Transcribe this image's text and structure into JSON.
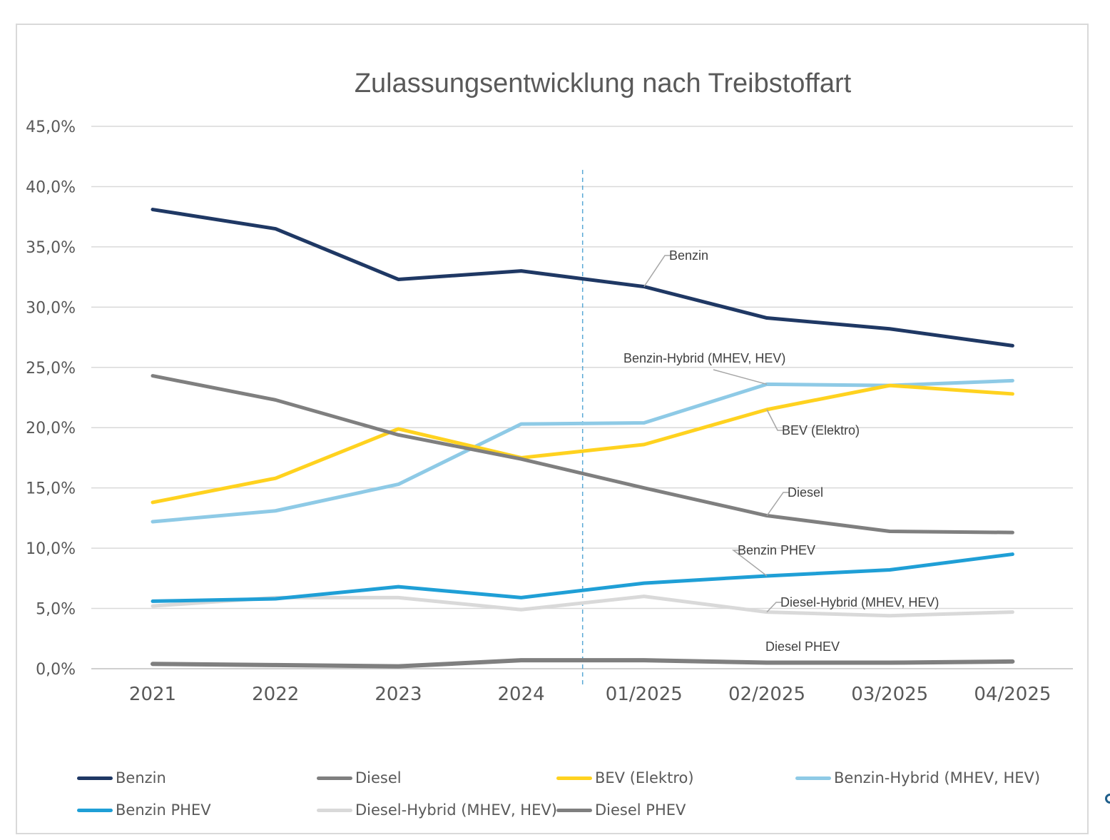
{
  "chart_data": {
    "type": "line",
    "title": "Zulassungsentwicklung nach Treibstoffart",
    "xlabel": "",
    "ylabel": "",
    "categories": [
      "2021",
      "2022",
      "2023",
      "2024",
      "01/2025",
      "02/2025",
      "03/2025",
      "04/2025"
    ],
    "ylim": [
      0,
      45
    ],
    "yticks": [
      "0,0%",
      "5,0%",
      "10,0%",
      "15,0%",
      "20,0%",
      "25,0%",
      "30,0%",
      "35,0%",
      "40,0%",
      "45,0%"
    ],
    "grid": true,
    "legend_position": "bottom",
    "series": [
      {
        "name": "Benzin",
        "color": "#1f3864",
        "values": [
          38.1,
          36.5,
          32.3,
          33.0,
          31.7,
          29.1,
          28.2,
          26.8
        ]
      },
      {
        "name": "Diesel",
        "color": "#7f7f7f",
        "values": [
          24.3,
          22.3,
          19.4,
          17.4,
          15.0,
          12.7,
          11.4,
          11.3
        ]
      },
      {
        "name": "BEV (Elektro)",
        "color": "#ffd21f",
        "values": [
          13.8,
          15.8,
          19.9,
          17.5,
          18.6,
          21.5,
          23.5,
          22.8
        ]
      },
      {
        "name": "Benzin-Hybrid (MHEV, HEV)",
        "color": "#8ecae6",
        "values": [
          12.2,
          13.1,
          15.3,
          20.3,
          20.4,
          23.6,
          23.5,
          23.9
        ]
      },
      {
        "name": "Benzin PHEV",
        "color": "#1f9fd6",
        "values": [
          5.6,
          5.8,
          6.8,
          5.9,
          7.1,
          7.7,
          8.2,
          9.5
        ]
      },
      {
        "name": "Diesel-Hybrid (MHEV, HEV)",
        "color": "#d9d9d9",
        "values": [
          5.2,
          5.9,
          5.9,
          4.9,
          6.0,
          4.7,
          4.4,
          4.7
        ]
      },
      {
        "name": "Diesel PHEV",
        "color": "#7f7f7f",
        "values": [
          0.4,
          0.3,
          0.2,
          0.7,
          0.7,
          0.5,
          0.5,
          0.6
        ]
      }
    ],
    "annotations": [
      {
        "text": "Benzin",
        "series": "Benzin",
        "at": "01/2025"
      },
      {
        "text": "Benzin-Hybrid (MHEV, HEV)",
        "series": "Benzin-Hybrid (MHEV, HEV)",
        "at": "02/2025"
      },
      {
        "text": "BEV (Elektro)",
        "series": "BEV (Elektro)",
        "at": "02/2025"
      },
      {
        "text": "Diesel",
        "series": "Diesel",
        "at": "02/2025"
      },
      {
        "text": "Benzin PHEV",
        "series": "Benzin PHEV",
        "at": "02/2025"
      },
      {
        "text": "Diesel-Hybrid (MHEV, HEV)",
        "series": "Diesel-Hybrid (MHEV, HEV)",
        "at": "02/2025"
      },
      {
        "text": "Diesel PHEV",
        "series": "Diesel PHEV",
        "at": "02/2025"
      }
    ],
    "separator_after": "2024"
  }
}
